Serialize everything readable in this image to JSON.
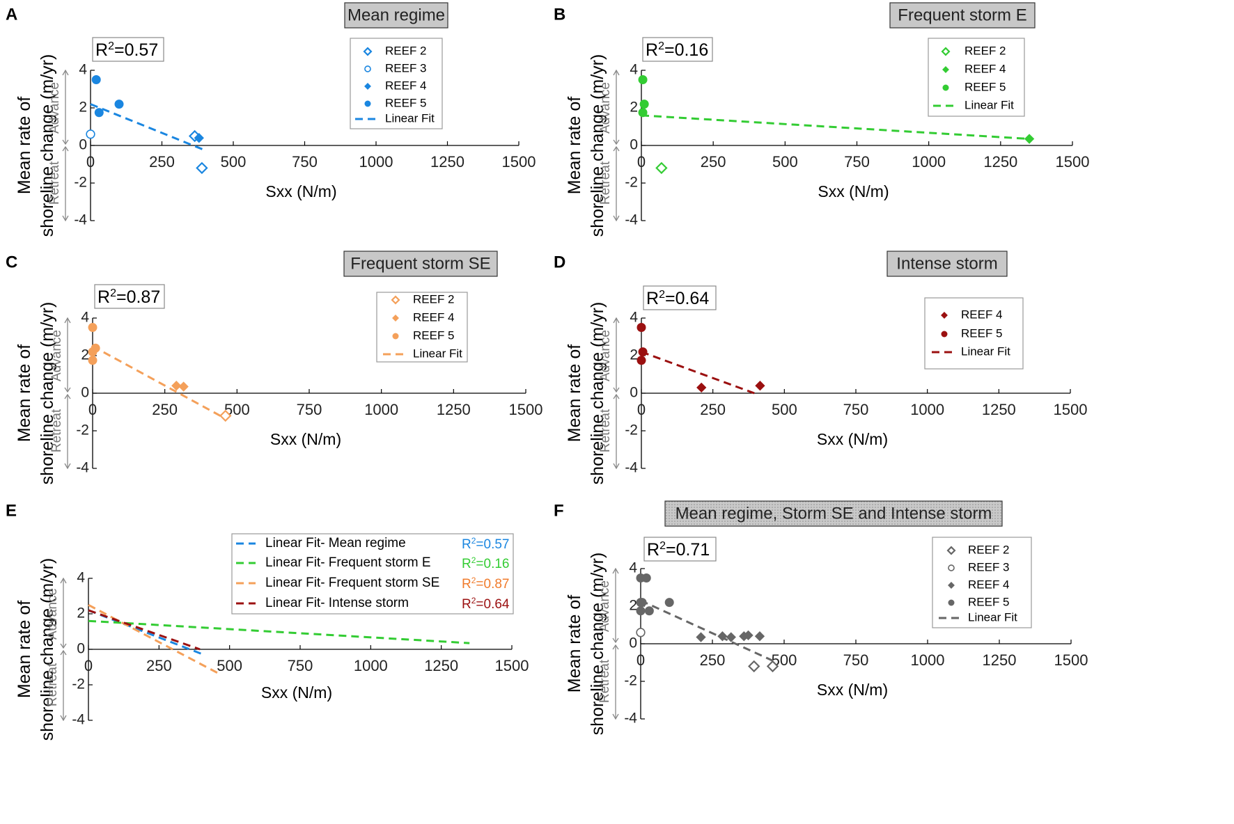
{
  "figure": {
    "ylabel_line1": "Mean rate of",
    "ylabel_line2": "shoreline change (m/yr)",
    "advance_label": "Advance",
    "retreat_label": "Retreat",
    "xlabel": "Sxx (N/m)",
    "xticks": [
      "0",
      "250",
      "500",
      "750",
      "1000",
      "1250",
      "1500"
    ],
    "yticks": [
      "4",
      "2",
      "0",
      "-2",
      "-4"
    ],
    "linear_fit_label": "Linear Fit"
  },
  "colors": {
    "mean": "#1a86e0",
    "stormE": "#33cc33",
    "stormSE": "#f4a05a",
    "intense": "#9b1010",
    "combined": "#666666",
    "r2_mean": "#1a86e0",
    "r2_stormE": "#33cc33",
    "r2_stormSE": "#f07b2c",
    "r2_intense": "#9b1010"
  },
  "chart_data": [
    {
      "panel": "A",
      "type": "scatter",
      "title": "Mean regime",
      "r2": "R²=0.57",
      "xlim": [
        0,
        1500
      ],
      "ylim": [
        -4,
        4
      ],
      "series": [
        {
          "name": "REEF 2",
          "marker": "diamond-open",
          "points": [
            [
              365,
              0.5
            ],
            [
              390,
              -1.2
            ]
          ]
        },
        {
          "name": "REEF 3",
          "marker": "circle-open",
          "points": [
            [
              0,
              0.6
            ]
          ]
        },
        {
          "name": "REEF 4",
          "marker": "diamond",
          "points": [
            [
              380,
              0.4
            ]
          ]
        },
        {
          "name": "REEF 5",
          "marker": "circle",
          "points": [
            [
              20,
              3.5
            ],
            [
              30,
              1.75
            ],
            [
              100,
              2.2
            ]
          ]
        }
      ],
      "fit": [
        [
          0,
          2.2
        ],
        [
          400,
          -0.25
        ]
      ]
    },
    {
      "panel": "B",
      "type": "scatter",
      "title": "Frequent storm E",
      "r2": "R²=0.16",
      "xlim": [
        0,
        1500
      ],
      "ylim": [
        -4,
        4
      ],
      "series": [
        {
          "name": "REEF 2",
          "marker": "diamond-open",
          "points": [
            [
              70,
              -1.2
            ]
          ]
        },
        {
          "name": "REEF 4",
          "marker": "diamond",
          "points": [
            [
              1350,
              0.35
            ]
          ]
        },
        {
          "name": "REEF 5",
          "marker": "circle",
          "points": [
            [
              5,
              3.5
            ],
            [
              10,
              2.2
            ],
            [
              5,
              1.75
            ]
          ]
        }
      ],
      "fit": [
        [
          0,
          1.6
        ],
        [
          1350,
          0.35
        ]
      ]
    },
    {
      "panel": "C",
      "type": "scatter",
      "title": "Frequent storm SE",
      "r2": "R²=0.87",
      "xlim": [
        0,
        1500
      ],
      "ylim": [
        -4,
        4
      ],
      "series": [
        {
          "name": "REEF 2",
          "marker": "diamond-open",
          "points": [
            [
              460,
              -1.2
            ]
          ]
        },
        {
          "name": "REEF 4",
          "marker": "diamond",
          "points": [
            [
              290,
              0.4
            ],
            [
              315,
              0.35
            ],
            [
              5,
              2.3
            ]
          ]
        },
        {
          "name": "REEF 5",
          "marker": "circle",
          "points": [
            [
              0,
              3.5
            ],
            [
              0,
              2.2
            ],
            [
              0,
              1.75
            ],
            [
              10,
              2.4
            ]
          ]
        }
      ],
      "fit": [
        [
          0,
          2.5
        ],
        [
          460,
          -1.35
        ]
      ]
    },
    {
      "panel": "D",
      "type": "scatter",
      "title": "Intense storm",
      "r2": "R²=0.64",
      "xlim": [
        0,
        1500
      ],
      "ylim": [
        -4,
        4
      ],
      "series": [
        {
          "name": "REEF 4",
          "marker": "diamond",
          "points": [
            [
              210,
              0.3
            ],
            [
              415,
              0.4
            ]
          ]
        },
        {
          "name": "REEF 5",
          "marker": "circle",
          "points": [
            [
              0,
              3.5
            ],
            [
              5,
              2.2
            ],
            [
              0,
              1.75
            ]
          ]
        }
      ],
      "fit": [
        [
          0,
          2.2
        ],
        [
          395,
          0
        ]
      ]
    },
    {
      "panel": "E",
      "type": "line",
      "title": "",
      "xlim": [
        0,
        1500
      ],
      "ylim": [
        -4,
        4
      ],
      "lines": [
        {
          "name": "Linear Fit- Mean regime",
          "r2": "R²=0.57",
          "points": [
            [
              0,
              2.2
            ],
            [
              400,
              -0.25
            ]
          ]
        },
        {
          "name": "Linear Fit- Frequent storm E",
          "r2": "R²=0.16",
          "points": [
            [
              0,
              1.6
            ],
            [
              1350,
              0.35
            ]
          ]
        },
        {
          "name": "Linear Fit- Frequent storm SE",
          "r2": "R²=0.87",
          "points": [
            [
              0,
              2.5
            ],
            [
              460,
              -1.35
            ]
          ]
        },
        {
          "name": "Linear Fit- Intense storm",
          "r2": "R²=0.64",
          "points": [
            [
              0,
              2.2
            ],
            [
              395,
              0
            ]
          ]
        }
      ]
    },
    {
      "panel": "F",
      "type": "scatter",
      "title": "Mean regime, Storm SE and Intense storm",
      "r2": "R²=0.71",
      "xlim": [
        0,
        1500
      ],
      "ylim": [
        -4,
        4
      ],
      "series": [
        {
          "name": "REEF 2",
          "marker": "diamond-open",
          "points": [
            [
              395,
              -1.2
            ],
            [
              460,
              -1.2
            ]
          ]
        },
        {
          "name": "REEF 3",
          "marker": "circle-open",
          "points": [
            [
              0,
              0.6
            ]
          ]
        },
        {
          "name": "REEF 4",
          "marker": "diamond",
          "points": [
            [
              210,
              0.35
            ],
            [
              285,
              0.4
            ],
            [
              315,
              0.35
            ],
            [
              360,
              0.4
            ],
            [
              375,
              0.45
            ],
            [
              415,
              0.4
            ]
          ]
        },
        {
          "name": "REEF 5",
          "marker": "circle",
          "points": [
            [
              0,
              3.5
            ],
            [
              20,
              3.5
            ],
            [
              0,
              2.2
            ],
            [
              5,
              2.2
            ],
            [
              0,
              1.75
            ],
            [
              30,
              1.75
            ],
            [
              100,
              2.2
            ]
          ]
        }
      ],
      "fit": [
        [
          0,
          2.3
        ],
        [
          460,
          -0.9
        ]
      ]
    }
  ]
}
